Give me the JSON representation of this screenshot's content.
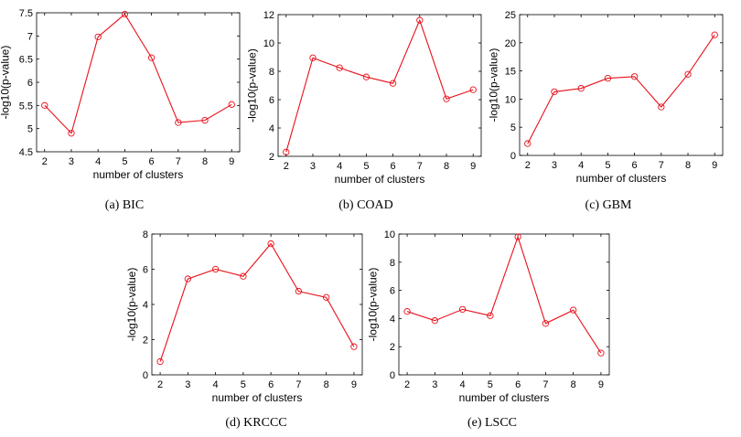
{
  "chart_data": [
    {
      "id": "bic",
      "type": "line",
      "caption": "(a)  BIC",
      "xlabel": "number of clusters",
      "ylabel": "-log10(p-value)",
      "x": [
        2,
        3,
        4,
        5,
        6,
        7,
        8,
        9
      ],
      "y": [
        5.5,
        4.9,
        6.98,
        7.47,
        6.53,
        5.13,
        5.18,
        5.52
      ],
      "xticks": [
        "2",
        "3",
        "4",
        "5",
        "6",
        "7",
        "8",
        "9"
      ],
      "yticks": [
        "4.5",
        "5",
        "5.5",
        "6",
        "6.5",
        "7",
        "7.5"
      ],
      "xlim": [
        1.7,
        9.3
      ],
      "ylim": [
        4.5,
        7.5
      ],
      "line_color": "#e8101a",
      "marker": "circle"
    },
    {
      "id": "coad",
      "type": "line",
      "caption": "(b)  COAD",
      "xlabel": "number of clusters",
      "ylabel": "-log10(p-value)",
      "x": [
        2,
        3,
        4,
        5,
        6,
        7,
        8,
        9
      ],
      "y": [
        2.3,
        8.95,
        8.25,
        7.6,
        7.15,
        11.6,
        6.05,
        6.7
      ],
      "xticks": [
        "2",
        "3",
        "4",
        "5",
        "6",
        "7",
        "8",
        "9"
      ],
      "yticks": [
        "2",
        "4",
        "6",
        "8",
        "10",
        "12"
      ],
      "xlim": [
        1.7,
        9.3
      ],
      "ylim": [
        2,
        12
      ],
      "line_color": "#e8101a",
      "marker": "circle"
    },
    {
      "id": "gbm",
      "type": "line",
      "caption": "(c)  GBM",
      "xlabel": "number of clusters",
      "ylabel": "-log10(p-value)",
      "x": [
        2,
        3,
        4,
        5,
        6,
        7,
        8,
        9
      ],
      "y": [
        2.1,
        11.3,
        11.9,
        13.7,
        14.0,
        8.6,
        14.4,
        21.4
      ],
      "xticks": [
        "2",
        "3",
        "4",
        "5",
        "6",
        "7",
        "8",
        "9"
      ],
      "yticks": [
        "0",
        "5",
        "10",
        "15",
        "20",
        "25"
      ],
      "xlim": [
        1.7,
        9.3
      ],
      "ylim": [
        0,
        25
      ],
      "line_color": "#e8101a",
      "marker": "circle"
    },
    {
      "id": "krccc",
      "type": "line",
      "caption": "(d)  KRCCC",
      "xlabel": "number of clusters",
      "ylabel": "-log10(p-value)",
      "x": [
        2,
        3,
        4,
        5,
        6,
        7,
        8,
        9
      ],
      "y": [
        0.75,
        5.45,
        6.0,
        5.6,
        7.45,
        4.75,
        4.4,
        1.6
      ],
      "xticks": [
        "2",
        "3",
        "4",
        "5",
        "6",
        "7",
        "8",
        "9"
      ],
      "yticks": [
        "0",
        "2",
        "4",
        "6",
        "8"
      ],
      "xlim": [
        1.7,
        9.3
      ],
      "ylim": [
        0,
        8
      ],
      "line_color": "#e8101a",
      "marker": "circle"
    },
    {
      "id": "lscc",
      "type": "line",
      "caption": "(e)  LSCC",
      "xlabel": "number of clusters",
      "ylabel": "-log10(p-value)",
      "x": [
        2,
        3,
        4,
        5,
        6,
        7,
        8,
        9
      ],
      "y": [
        4.5,
        3.85,
        4.65,
        4.2,
        9.8,
        3.65,
        4.6,
        1.55
      ],
      "xticks": [
        "2",
        "3",
        "4",
        "5",
        "6",
        "7",
        "8",
        "9"
      ],
      "yticks": [
        "0",
        "2",
        "4",
        "6",
        "8",
        "10"
      ],
      "xlim": [
        1.7,
        9.3
      ],
      "ylim": [
        0,
        10
      ],
      "line_color": "#e8101a",
      "marker": "circle"
    }
  ]
}
